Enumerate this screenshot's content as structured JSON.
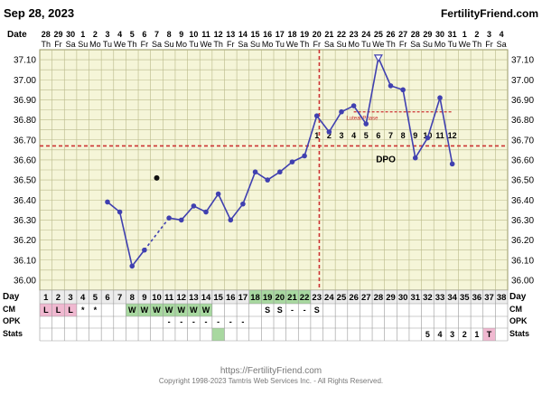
{
  "header": {
    "date": "Sep 28, 2023",
    "brand": "FertilityFriend.com"
  },
  "row_labels": {
    "date": "Date",
    "day": "Day",
    "cm": "CM",
    "opk": "OPK",
    "stats": "Stats"
  },
  "calendar": {
    "dates": [
      "28",
      "29",
      "30",
      "1",
      "2",
      "3",
      "4",
      "5",
      "6",
      "7",
      "8",
      "9",
      "10",
      "11",
      "12",
      "13",
      "14",
      "15",
      "16",
      "17",
      "18",
      "19",
      "20",
      "21",
      "22",
      "23",
      "24",
      "25",
      "26",
      "27",
      "28",
      "29",
      "30",
      "31",
      "1",
      "2",
      "3",
      "4"
    ],
    "weekdays": [
      "Th",
      "Fr",
      "Sa",
      "Su",
      "Mo",
      "Tu",
      "We",
      "Th",
      "Fr",
      "Sa",
      "Su",
      "Mo",
      "Tu",
      "We",
      "Th",
      "Fr",
      "Sa",
      "Su",
      "Mo",
      "Tu",
      "We",
      "Th",
      "Fr",
      "Sa",
      "Su",
      "Mo",
      "Tu",
      "We",
      "Th",
      "Fr",
      "Sa",
      "Su",
      "Mo",
      "Tu",
      "We",
      "Th",
      "Fr",
      "Sa"
    ],
    "days": [
      "1",
      "2",
      "3",
      "4",
      "5",
      "6",
      "7",
      "8",
      "9",
      "10",
      "11",
      "12",
      "13",
      "14",
      "15",
      "16",
      "17",
      "18",
      "19",
      "20",
      "21",
      "22",
      "23",
      "24",
      "25",
      "26",
      "27",
      "28",
      "29",
      "30",
      "31",
      "32",
      "33",
      "34",
      "35",
      "36",
      "37",
      "38"
    ],
    "cm": [
      "L",
      "L",
      "L",
      "*",
      "*",
      "",
      "",
      "W",
      "W",
      "W",
      "W",
      "W",
      "W",
      "W",
      "",
      "",
      "",
      "",
      "S",
      "S",
      "-",
      "-",
      "S",
      "",
      "",
      "",
      "",
      "",
      "",
      "",
      "",
      "",
      "",
      "",
      "",
      "",
      "",
      ""
    ],
    "opk": [
      "",
      "",
      "",
      "",
      "",
      "",
      "",
      "",
      "",
      "",
      "-",
      "-",
      "-",
      "-",
      "-",
      "-",
      "-",
      "",
      "",
      "",
      "",
      "",
      "",
      "",
      "",
      "",
      "",
      "",
      "",
      "",
      "",
      "",
      "",
      "",
      "",
      "",
      "",
      ""
    ],
    "stats": [
      "",
      "",
      "",
      "",
      "",
      "",
      "",
      "",
      "",
      "",
      "",
      "",
      "",
      "",
      "",
      "",
      "",
      "",
      "",
      "",
      "",
      "",
      "",
      "",
      "",
      "",
      "",
      "",
      "",
      "",
      "",
      "5",
      "4",
      "3",
      "2",
      "1",
      "T",
      ""
    ]
  },
  "annotations": {
    "luteal_label": "Luteal Phase",
    "dpo_label": "DPO",
    "dpo_numbers": [
      "1",
      "2",
      "3",
      "4",
      "5",
      "6",
      "7",
      "8",
      "9",
      "10",
      "11",
      "12"
    ]
  },
  "footer": {
    "url": "https://FertilityFriend.com",
    "copyright": "Copyright 1998-2023 Tamtris Web Services Inc. - All Rights Reserved."
  },
  "colors": {
    "background": "#f5f5d8",
    "grid": "#b9b98a",
    "line": "#4040b0",
    "coverline": "#cc3333",
    "ovulation": "#cc3333",
    "cm_pink": "#f0b8d0",
    "cm_green": "#a8d8a0",
    "stats_pink": "#f0b8d0"
  },
  "chart_data": {
    "type": "line",
    "xlabel": "Day",
    "ylabel": "",
    "ylim": [
      35.95,
      37.15
    ],
    "yticks": [
      "37.10",
      "37.00",
      "36.90",
      "36.80",
      "36.70",
      "36.60",
      "36.50",
      "36.40",
      "36.30",
      "36.20",
      "36.10",
      "36.00"
    ],
    "x": [
      6,
      7,
      8,
      9,
      11,
      12,
      13,
      14,
      15,
      16,
      17,
      18,
      19,
      20,
      21,
      22,
      23,
      24,
      25,
      26,
      27,
      28,
      29,
      30,
      31,
      32,
      33,
      34,
      35
    ],
    "y": [
      36.39,
      36.34,
      36.07,
      36.15,
      36.31,
      36.3,
      36.37,
      36.34,
      36.43,
      36.3,
      36.38,
      36.54,
      36.5,
      36.54,
      36.59,
      36.62,
      36.82,
      36.74,
      36.84,
      36.87,
      36.78,
      37.11,
      36.97,
      36.95,
      36.61,
      36.71,
      36.91,
      36.58,
      null
    ],
    "dashed_segment": {
      "from_day": 9,
      "to_day": 11
    },
    "discarded_point": {
      "day": 10,
      "temp": 36.51
    },
    "coverline_temp": 36.67,
    "ovulation_day": 23,
    "luteal_phase": {
      "from_day": 26,
      "to_day": 34,
      "temp": 36.84
    },
    "dpo_start_day": 23
  }
}
